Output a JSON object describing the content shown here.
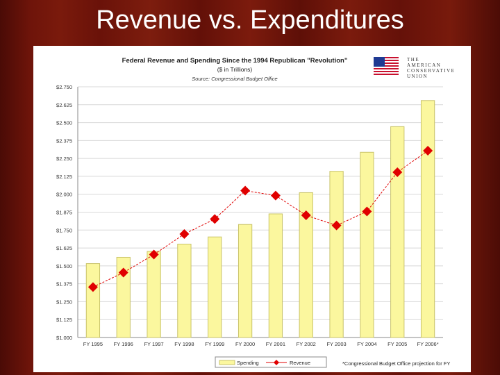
{
  "slide": {
    "title": "Revenue vs. Expenditures"
  },
  "logo": {
    "lines": [
      "THE",
      "AMERICAN",
      "CONSERVATIVE",
      "UNION"
    ],
    "icon": "us-flag-icon"
  },
  "footnote": "*Congressional Budget Office projection for FY",
  "colors": {
    "spending_fill": "#fbf79e",
    "spending_stroke": "#c9c36a",
    "revenue": "#e00000",
    "grid": "#d8d8d8"
  },
  "chart_data": {
    "type": "bar",
    "title": "Federal Revenue and Spending Since the 1994 Republican \"Revolution\"",
    "subtitle": "($ in Trillions)",
    "source": "Source: Congressional Budget Office",
    "categories": [
      "FY 1995",
      "FY 1996",
      "FY 1997",
      "FY 1998",
      "FY 1999",
      "FY 2000",
      "FY 2001",
      "FY 2002",
      "FY 2003",
      "FY 2004",
      "FY 2005",
      "FY 2006*"
    ],
    "series": [
      {
        "name": "Spending",
        "kind": "bar",
        "values": [
          1.516,
          1.56,
          1.601,
          1.652,
          1.702,
          1.789,
          1.863,
          2.011,
          2.16,
          2.293,
          2.472,
          2.654
        ]
      },
      {
        "name": "Revenue",
        "kind": "line",
        "values": [
          1.352,
          1.453,
          1.579,
          1.722,
          1.827,
          2.025,
          1.991,
          1.853,
          1.782,
          1.88,
          2.154,
          2.304
        ]
      }
    ],
    "ylim": [
      1.0,
      2.75
    ],
    "yticks": [
      "$1.000",
      "$1.125",
      "$1.250",
      "$1.375",
      "$1.500",
      "$1.625",
      "$1.750",
      "$1.875",
      "$2.000",
      "$2.125",
      "$2.250",
      "$2.375",
      "$2.500",
      "$2.625",
      "$2.750"
    ],
    "legend": [
      "Spending",
      "Revenue"
    ],
    "legend_position": "bottom-left",
    "grid": true
  }
}
